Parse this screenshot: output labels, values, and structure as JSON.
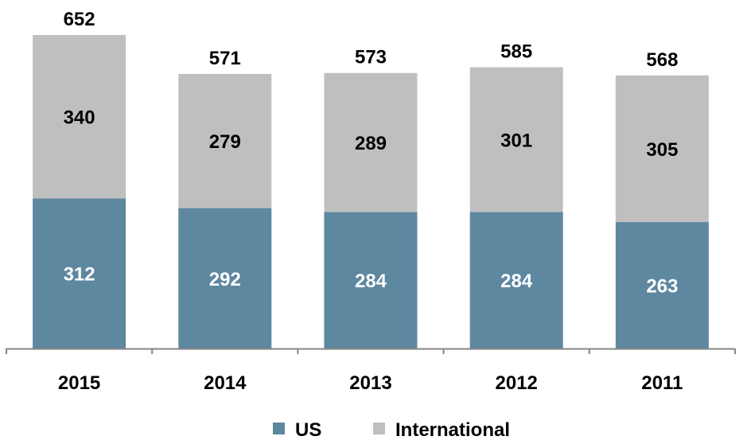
{
  "chart_data": {
    "type": "bar",
    "stacked": true,
    "categories": [
      "2015",
      "2014",
      "2013",
      "2012",
      "2011"
    ],
    "series": [
      {
        "name": "US",
        "values": [
          312,
          292,
          284,
          284,
          263
        ],
        "color": "#5E87A0",
        "label_color": "#FFFFFF"
      },
      {
        "name": "International",
        "values": [
          340,
          279,
          289,
          301,
          305
        ],
        "color": "#BFBFBF",
        "label_color": "#000000"
      }
    ],
    "totals": [
      652,
      571,
      573,
      585,
      568
    ],
    "ylim": [
      0,
      652
    ],
    "grid": false,
    "legend_position": "bottom",
    "axis_color": "#868686"
  }
}
